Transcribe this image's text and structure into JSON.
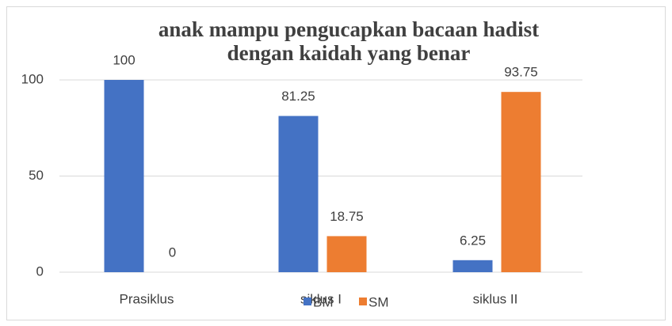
{
  "chart_data": {
    "type": "bar",
    "title": [
      "anak mampu pengucapkan bacaan hadist",
      "dengan kaidah yang benar"
    ],
    "categories": [
      "Prasiklus",
      "siklus I",
      "siklus II"
    ],
    "series": [
      {
        "name": "BM",
        "color": "#4472c4",
        "values": [
          100,
          81.25,
          6.25
        ]
      },
      {
        "name": "SM",
        "color": "#ed7d31",
        "values": [
          0,
          18.75,
          93.75
        ]
      }
    ],
    "ylim": [
      0,
      100
    ],
    "yticks": [
      0,
      50,
      100
    ],
    "grid": true,
    "legend": "bottom"
  }
}
